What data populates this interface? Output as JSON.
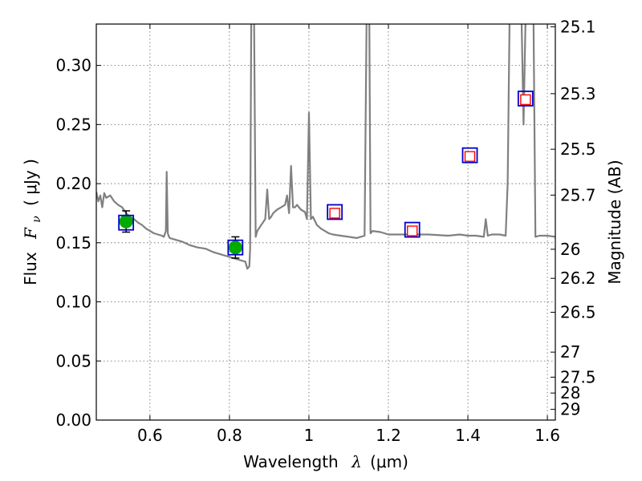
{
  "chart_data": {
    "type": "scatter",
    "xlabel_text": "Wavelength",
    "xlabel_symbol": "λ",
    "xlabel_unit": "(μm)",
    "ylabel_text": "Flux",
    "ylabel_symbol": "F",
    "ylabel_subscript": "ν",
    "ylabel_unit": "( μJy )",
    "y2label": "Magnitude (AB)",
    "xlim": [
      0.465,
      1.62
    ],
    "ylim": [
      0.0,
      0.335
    ],
    "xticks": [
      0.6,
      0.8,
      1.0,
      1.2,
      1.4,
      1.6
    ],
    "xtick_labels": [
      "0.6",
      "0.8",
      "1",
      "1.2",
      "1.4",
      "1.6"
    ],
    "yticks": [
      0.0,
      0.05,
      0.1,
      0.15,
      0.2,
      0.25,
      0.3
    ],
    "ytick_labels": [
      "0.00",
      "0.05",
      "0.10",
      "0.15",
      "0.20",
      "0.25",
      "0.30"
    ],
    "y2ticks": [
      {
        "flux": 0.3327,
        "label": "25.1"
      },
      {
        "flux": 0.2761,
        "label": "25.3"
      },
      {
        "flux": 0.2291,
        "label": "25.5"
      },
      {
        "flux": 0.1903,
        "label": "25.7"
      },
      {
        "flux": 0.1445,
        "label": "26"
      },
      {
        "flux": 0.1199,
        "label": "26.2"
      },
      {
        "flux": 0.0912,
        "label": "26.5"
      },
      {
        "flux": 0.0575,
        "label": "27"
      },
      {
        "flux": 0.0363,
        "label": "27.5"
      },
      {
        "flux": 0.0229,
        "label": "28"
      },
      {
        "flux": 0.0091,
        "label": "29"
      }
    ],
    "grid": true,
    "colors": {
      "model": "#808080",
      "observed": "#00aa00",
      "model_box": "#0000cc",
      "synthetic": "#ff0000",
      "errorbar": "#000000"
    },
    "series": [
      {
        "name": "model_spectrum",
        "style": "line",
        "x": [
          0.465,
          0.47,
          0.475,
          0.48,
          0.485,
          0.49,
          0.5,
          0.51,
          0.52,
          0.53,
          0.54,
          0.55,
          0.56,
          0.57,
          0.58,
          0.59,
          0.6,
          0.61,
          0.62,
          0.63,
          0.635,
          0.64,
          0.642,
          0.645,
          0.648,
          0.65,
          0.66,
          0.68,
          0.7,
          0.72,
          0.74,
          0.76,
          0.78,
          0.8,
          0.82,
          0.84,
          0.845,
          0.85,
          0.852,
          0.855,
          0.858,
          0.862,
          0.866,
          0.87,
          0.88,
          0.89,
          0.895,
          0.9,
          0.905,
          0.91,
          0.92,
          0.93,
          0.94,
          0.945,
          0.95,
          0.955,
          0.96,
          0.965,
          0.97,
          0.98,
          0.99,
          0.995,
          1.0,
          1.005,
          1.01,
          1.02,
          1.03,
          1.04,
          1.05,
          1.06,
          1.08,
          1.1,
          1.12,
          1.14,
          1.145,
          1.148,
          1.15,
          1.152,
          1.155,
          1.16,
          1.18,
          1.2,
          1.25,
          1.3,
          1.35,
          1.38,
          1.4,
          1.42,
          1.44,
          1.445,
          1.45,
          1.46,
          1.48,
          1.495,
          1.5,
          1.505,
          1.52,
          1.525,
          1.53,
          1.535,
          1.54,
          1.545,
          1.55,
          1.555,
          1.56,
          1.565,
          1.57,
          1.58,
          1.6,
          1.62
        ],
        "y": [
          0.193,
          0.185,
          0.19,
          0.18,
          0.192,
          0.188,
          0.19,
          0.185,
          0.182,
          0.18,
          0.175,
          0.172,
          0.17,
          0.167,
          0.165,
          0.162,
          0.16,
          0.158,
          0.157,
          0.156,
          0.155,
          0.16,
          0.21,
          0.158,
          0.155,
          0.154,
          0.153,
          0.151,
          0.148,
          0.146,
          0.145,
          0.142,
          0.14,
          0.138,
          0.136,
          0.134,
          0.128,
          0.13,
          0.145,
          0.34,
          0.34,
          0.34,
          0.155,
          0.16,
          0.165,
          0.17,
          0.195,
          0.17,
          0.172,
          0.175,
          0.178,
          0.18,
          0.182,
          0.19,
          0.175,
          0.215,
          0.18,
          0.18,
          0.182,
          0.178,
          0.176,
          0.17,
          0.26,
          0.17,
          0.172,
          0.165,
          0.162,
          0.16,
          0.158,
          0.157,
          0.156,
          0.155,
          0.154,
          0.156,
          0.34,
          0.34,
          0.34,
          0.34,
          0.158,
          0.16,
          0.159,
          0.157,
          0.157,
          0.157,
          0.156,
          0.157,
          0.156,
          0.156,
          0.155,
          0.17,
          0.156,
          0.157,
          0.157,
          0.156,
          0.2,
          0.34,
          0.34,
          0.34,
          0.34,
          0.34,
          0.25,
          0.34,
          0.34,
          0.34,
          0.34,
          0.34,
          0.155,
          0.156,
          0.156,
          0.155
        ]
      },
      {
        "name": "observed_photometry",
        "style": "points",
        "marker": "filled-circle-with-errorbar",
        "x": [
          0.54,
          0.815
        ],
        "y": [
          0.168,
          0.146
        ],
        "yerr": [
          0.009,
          0.009
        ]
      },
      {
        "name": "model_photometry",
        "style": "points",
        "marker": "open-square-blue",
        "x": [
          0.54,
          0.815,
          1.065,
          1.26,
          1.405,
          1.545
        ],
        "y": [
          0.167,
          0.146,
          0.176,
          0.161,
          0.224,
          0.272
        ]
      },
      {
        "name": "synthetic_photometry",
        "style": "points",
        "marker": "open-square-red",
        "x": [
          1.065,
          1.26,
          1.405,
          1.545
        ],
        "y": [
          0.175,
          0.16,
          0.223,
          0.271
        ]
      }
    ]
  }
}
